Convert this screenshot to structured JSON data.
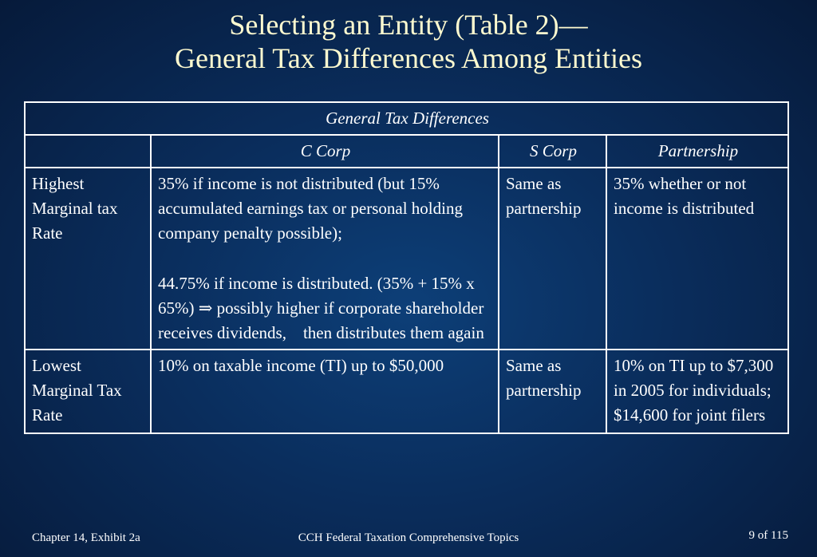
{
  "title": {
    "line1": "Selecting an Entity (Table 2)—",
    "line2": "General Tax Differences Among Entities"
  },
  "table": {
    "caption": "General Tax Differences",
    "columns": [
      "",
      "C Corp",
      "S Corp",
      "Partnership"
    ],
    "rows": [
      {
        "label": "Highest Marginal tax Rate",
        "c_corp_p1": "35% if income is not distributed (but 15% accumulated earnings tax or personal holding company penalty possible);",
        "c_corp_p2": "44.75% if income is distributed. (35% + 15% x 65%) ⇒ possibly higher if corporate shareholder receives dividends,    then distributes them again",
        "s_corp": "Same as partnership",
        "partnership": "35% whether or not income is distributed"
      },
      {
        "label": "Lowest Marginal Tax Rate",
        "c_corp": "10% on taxable income (TI) up to $50,000",
        "s_corp": "Same as partnership",
        "partnership": "10% on TI up to $7,300 in 2005 for individuals; $14,600 for joint filers"
      }
    ]
  },
  "footer": {
    "left": "Chapter 14, Exhibit 2a",
    "center": "CCH Federal Taxation Comprehensive Topics",
    "right": "9 of 115"
  }
}
